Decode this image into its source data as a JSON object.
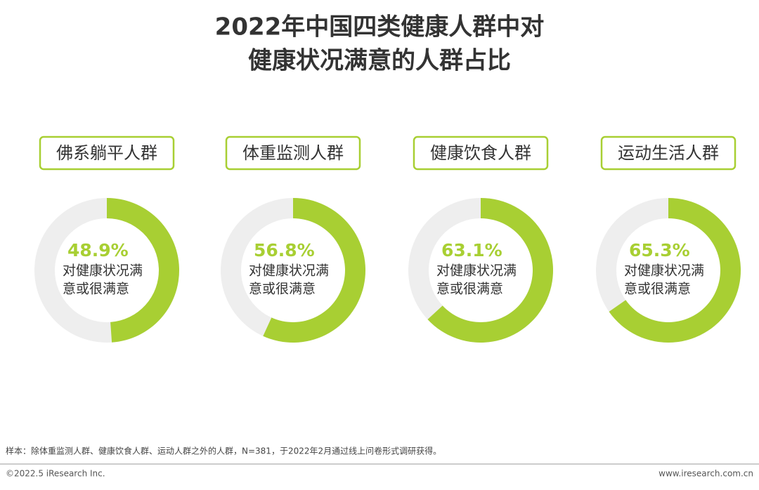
{
  "title": [
    "2022年中国四类健康人群中对",
    "健康状况满意的人群占比"
  ],
  "chart_data": [
    {
      "type": "donut",
      "title": "佛系躺平人群",
      "values": [
        48.9
      ],
      "value_labels": [
        "48.9%"
      ],
      "caption": [
        "对健康状况满",
        "意或很满意"
      ],
      "color": "#a8cf33",
      "track_color": "#eeeeee"
    },
    {
      "type": "donut",
      "title": "体重监测人群",
      "values": [
        56.8
      ],
      "value_labels": [
        "56.8%"
      ],
      "caption": [
        "对健康状况满",
        "意或很满意"
      ],
      "color": "#a8cf33",
      "track_color": "#eeeeee"
    },
    {
      "type": "donut",
      "title": "健康饮食人群",
      "values": [
        63.1
      ],
      "value_labels": [
        "63.1%"
      ],
      "caption": [
        "对健康状况满",
        "意或很满意"
      ],
      "color": "#a8cf33",
      "track_color": "#eeeeee"
    },
    {
      "type": "donut",
      "title": "运动生活人群",
      "values": [
        65.3
      ],
      "value_labels": [
        "65.3%"
      ],
      "caption": [
        "对健康状况满",
        "意或很满意"
      ],
      "color": "#a8cf33",
      "track_color": "#eeeeee"
    }
  ],
  "note": "样本：除体重监测人群、健康饮食人群、运动人群之外的人群，N=381，于2022年2月通过线上问卷形式调研获得。",
  "copyright": "©2022.5 iResearch Inc.",
  "website": "www.iresearch.com.cn"
}
